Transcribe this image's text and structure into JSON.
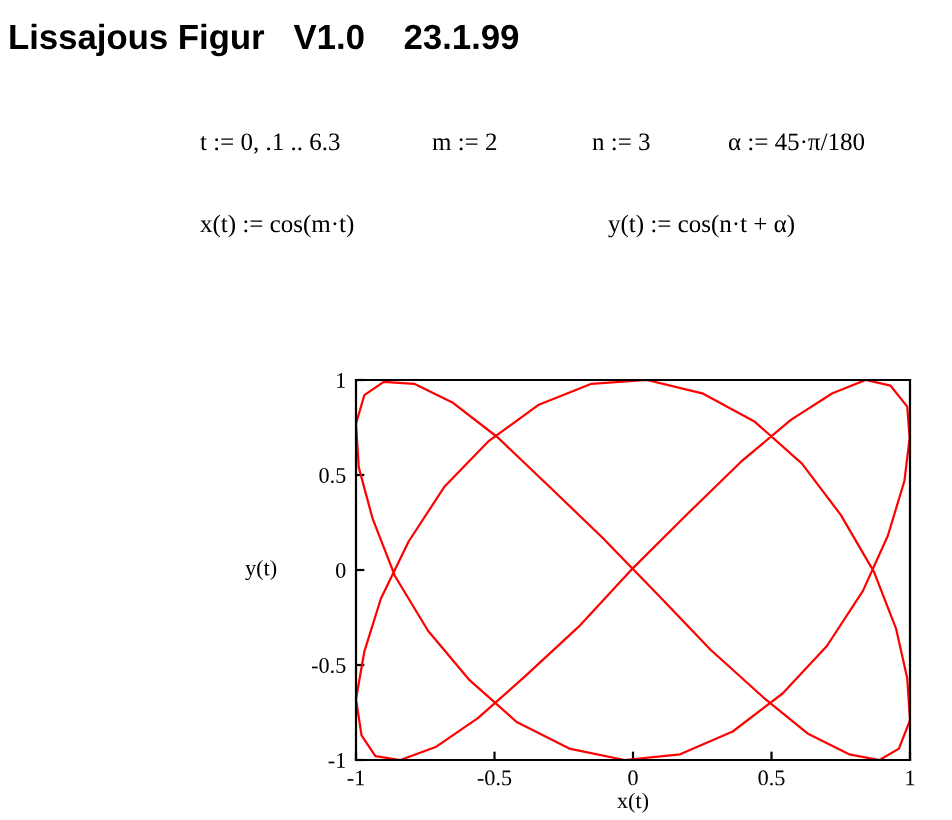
{
  "chart_data": {
    "type": "line",
    "title": "Lissajous Figur   V1.0    23.1.99",
    "annotations": [
      "t := 0, .1 .. 6.3",
      "m := 2",
      "n := 3",
      "α := 45·π/180",
      "x(t) := cos(m·t)",
      "y(t) := cos(n·t + α)"
    ],
    "xlabel": "x(t)",
    "ylabel": "y(t)",
    "series": [
      {
        "color": "#ff0000",
        "x": [
          1,
          0.98,
          0.92,
          0.83,
          0.7,
          0.54,
          0.36,
          0.17,
          -0.03,
          -0.23,
          -0.42,
          -0.59,
          -0.74,
          -0.86,
          -0.94,
          -0.99,
          -1.0,
          -0.97,
          -0.9,
          -0.79,
          -0.65,
          -0.49,
          -0.31,
          -0.11,
          0.09,
          0.28,
          0.47,
          0.63,
          0.78,
          0.89,
          0.96,
          1.0,
          0.99,
          0.95,
          0.87,
          0.75,
          0.61,
          0.44,
          0.25,
          0.05,
          -0.15,
          -0.34,
          -0.52,
          -0.68,
          -0.81,
          -0.91,
          -0.97,
          -1.0,
          -0.98,
          -0.93,
          -0.84,
          -0.71,
          -0.56,
          -0.39,
          -0.19,
          0.0,
          0.2,
          0.39,
          0.57,
          0.72,
          0.84,
          0.93,
          0.99,
          1.0
        ],
        "values": [
          0.71,
          0.47,
          0.18,
          -0.11,
          -0.4,
          -0.65,
          -0.85,
          -0.97,
          -1.0,
          -0.94,
          -0.8,
          -0.58,
          -0.32,
          -0.03,
          0.27,
          0.54,
          0.77,
          0.92,
          0.99,
          0.98,
          0.88,
          0.7,
          0.45,
          0.17,
          -0.13,
          -0.42,
          -0.67,
          -0.86,
          -0.97,
          -1.0,
          -0.94,
          -0.79,
          -0.57,
          -0.31,
          -0.01,
          0.29,
          0.56,
          0.78,
          0.93,
          1.0,
          0.98,
          0.87,
          0.68,
          0.44,
          0.15,
          -0.15,
          -0.43,
          -0.68,
          -0.87,
          -0.98,
          -1.0,
          -0.93,
          -0.78,
          -0.56,
          -0.29,
          0.01,
          0.3,
          0.57,
          0.79,
          0.93,
          1.0,
          0.97,
          0.86,
          0.67
        ]
      }
    ],
    "xlim": [
      -1,
      1
    ],
    "ylim": [
      -1,
      1
    ],
    "xticks": [
      -1,
      -0.5,
      0,
      0.5,
      1
    ],
    "yticks": [
      -1,
      -0.5,
      0,
      0.5,
      1
    ],
    "grid": false,
    "legend": false
  }
}
